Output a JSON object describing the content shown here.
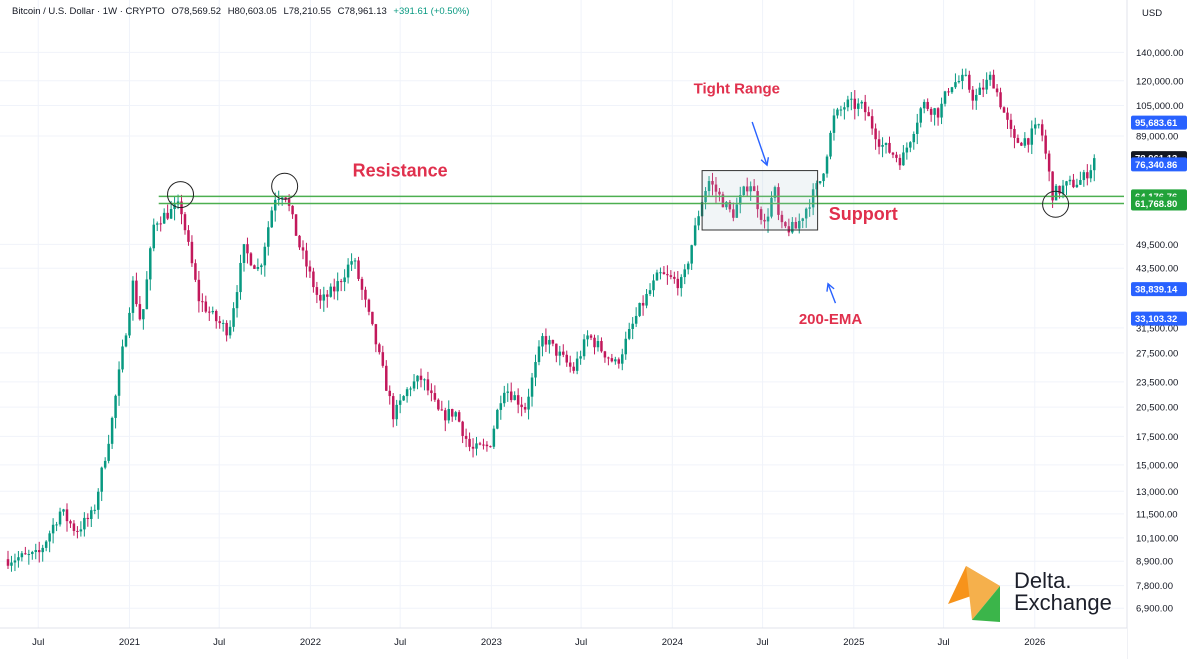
{
  "header": {
    "symbol": "Bitcoin / U.S. Dollar · 1W · CRYPTO",
    "open": "O78,569.52",
    "high": "H80,603.05",
    "low": "L78,210.55",
    "close": "C78,961.13",
    "change": "+391.61 (+0.50%)"
  },
  "brand": {
    "line1": "Delta.",
    "line2": "Exchange",
    "colors": {
      "orange": "#f7931a",
      "green": "#3bb54a"
    }
  },
  "colors": {
    "up": "#089981",
    "down": "#c2185b",
    "level_line": "#4caf50",
    "annotation_text": "#e0304d",
    "annotation_arrow": "#2962ff",
    "blue_badge": "#2962ff",
    "green_badge": "#22a33a",
    "price_badge": "#131722"
  },
  "chart_data": {
    "type": "candlestick",
    "currency_label": "USD",
    "x_range": [
      "2020-05-01",
      "2026-06-30"
    ],
    "y_scale": "log",
    "ylim": [
      6200,
      165000
    ],
    "y_ticks": [
      {
        "value": 140000,
        "label": "140,000.00"
      },
      {
        "value": 120000,
        "label": "120,000.00"
      },
      {
        "value": 105000,
        "label": "105,000.00"
      },
      {
        "value": 89000,
        "label": "89,000.00"
      },
      {
        "value": 49500,
        "label": "49,500.00"
      },
      {
        "value": 43500,
        "label": "43,500.00"
      },
      {
        "value": 31500,
        "label": "31,500.00"
      },
      {
        "value": 27500,
        "label": "27,500.00"
      },
      {
        "value": 23500,
        "label": "23,500.00"
      },
      {
        "value": 20500,
        "label": "20,500.00"
      },
      {
        "value": 17500,
        "label": "17,500.00"
      },
      {
        "value": 15000,
        "label": "15,000.00"
      },
      {
        "value": 13000,
        "label": "13,000.00"
      },
      {
        "value": 11500,
        "label": "11,500.00"
      },
      {
        "value": 10100,
        "label": "10,100.00"
      },
      {
        "value": 8900,
        "label": "8,900.00"
      },
      {
        "value": 7800,
        "label": "7,800.00"
      },
      {
        "value": 6900,
        "label": "6,900.00"
      }
    ],
    "x_ticks": [
      {
        "date": "2020-07-01",
        "label": "Jul"
      },
      {
        "date": "2021-01-01",
        "label": "2021"
      },
      {
        "date": "2021-07-01",
        "label": "Jul"
      },
      {
        "date": "2022-01-01",
        "label": "2022"
      },
      {
        "date": "2022-07-01",
        "label": "Jul"
      },
      {
        "date": "2023-01-01",
        "label": "2023"
      },
      {
        "date": "2023-07-01",
        "label": "Jul"
      },
      {
        "date": "2024-01-01",
        "label": "2024"
      },
      {
        "date": "2024-07-01",
        "label": "Jul"
      },
      {
        "date": "2025-01-01",
        "label": "2025"
      },
      {
        "date": "2025-07-01",
        "label": "Jul"
      },
      {
        "date": "2026-01-01",
        "label": "2026"
      }
    ],
    "price_badges": [
      {
        "value": 95683.61,
        "label": "95,683.61",
        "style": "blue"
      },
      {
        "value": 78961.13,
        "label": "78,961.13",
        "style": "dark"
      },
      {
        "value": 76340.86,
        "label": "76,340.86",
        "style": "blue"
      },
      {
        "value": 64176.76,
        "label": "64,176.76",
        "style": "green"
      },
      {
        "value": 61768.8,
        "label": "61,768.80",
        "style": "green"
      },
      {
        "value": 38839.14,
        "label": "38,839.14",
        "style": "blue"
      },
      {
        "value": 33103.32,
        "label": "33,103.32",
        "style": "blue"
      }
    ],
    "levels": [
      {
        "value": 64176.76,
        "start": "2021-03-01"
      },
      {
        "value": 61768.8,
        "start": "2021-03-01"
      }
    ],
    "annotations": [
      {
        "text": "Resistance",
        "date": "2022-07-01",
        "value": 71500
      },
      {
        "text": "Support",
        "date": "2025-01-20",
        "value": 56500
      },
      {
        "text": "Tight Range",
        "date": "2024-05-10",
        "value": 112000
      },
      {
        "text": "200-EMA",
        "date": "2024-11-15",
        "value": 32200
      }
    ],
    "arrows": [
      {
        "from": {
          "date": "2024-06-10",
          "value": 96000
        },
        "to": {
          "date": "2024-07-10",
          "value": 76000
        }
      },
      {
        "from": {
          "date": "2024-11-25",
          "value": 36000
        },
        "to": {
          "date": "2024-11-10",
          "value": 40000
        }
      }
    ],
    "range_box": {
      "start": "2024-03-01",
      "end": "2024-10-20",
      "high": 73800,
      "low": 53500
    },
    "circles": [
      {
        "date": "2021-04-14",
        "value": 64800
      },
      {
        "date": "2021-11-10",
        "value": 67800
      },
      {
        "date": "2026-02-12",
        "value": 61500
      }
    ],
    "anchors": [
      {
        "date": "2020-05-01",
        "value": 9000
      },
      {
        "date": "2020-07-01",
        "value": 9200
      },
      {
        "date": "2020-08-15",
        "value": 11700
      },
      {
        "date": "2020-09-15",
        "value": 10500
      },
      {
        "date": "2020-10-20",
        "value": 11500
      },
      {
        "date": "2020-11-25",
        "value": 18500
      },
      {
        "date": "2021-01-08",
        "value": 40000
      },
      {
        "date": "2021-01-25",
        "value": 32000
      },
      {
        "date": "2021-02-20",
        "value": 56000
      },
      {
        "date": "2021-04-14",
        "value": 61000
      },
      {
        "date": "2021-05-20",
        "value": 37000
      },
      {
        "date": "2021-06-22",
        "value": 33000
      },
      {
        "date": "2021-07-20",
        "value": 31000
      },
      {
        "date": "2021-08-20",
        "value": 48000
      },
      {
        "date": "2021-09-20",
        "value": 43000
      },
      {
        "date": "2021-10-20",
        "value": 64000
      },
      {
        "date": "2021-11-10",
        "value": 66000
      },
      {
        "date": "2021-12-10",
        "value": 49000
      },
      {
        "date": "2022-01-20",
        "value": 36000
      },
      {
        "date": "2022-02-20",
        "value": 39000
      },
      {
        "date": "2022-03-28",
        "value": 46000
      },
      {
        "date": "2022-05-10",
        "value": 30000
      },
      {
        "date": "2022-06-18",
        "value": 19500
      },
      {
        "date": "2022-07-20",
        "value": 23000
      },
      {
        "date": "2022-08-14",
        "value": 24000
      },
      {
        "date": "2022-09-20",
        "value": 19500
      },
      {
        "date": "2022-10-20",
        "value": 20000
      },
      {
        "date": "2022-11-21",
        "value": 16200
      },
      {
        "date": "2022-12-28",
        "value": 16600
      },
      {
        "date": "2023-01-25",
        "value": 23000
      },
      {
        "date": "2023-03-10",
        "value": 20500
      },
      {
        "date": "2023-04-15",
        "value": 30000
      },
      {
        "date": "2023-06-15",
        "value": 25000
      },
      {
        "date": "2023-07-15",
        "value": 30200
      },
      {
        "date": "2023-09-10",
        "value": 25800
      },
      {
        "date": "2023-10-25",
        "value": 34500
      },
      {
        "date": "2023-12-05",
        "value": 42000
      },
      {
        "date": "2024-01-22",
        "value": 40000
      },
      {
        "date": "2024-02-28",
        "value": 62000
      },
      {
        "date": "2024-03-14",
        "value": 70000
      },
      {
        "date": "2024-05-01",
        "value": 58000
      },
      {
        "date": "2024-06-05",
        "value": 70000
      },
      {
        "date": "2024-07-05",
        "value": 55000
      },
      {
        "date": "2024-07-25",
        "value": 67000
      },
      {
        "date": "2024-08-05",
        "value": 54000
      },
      {
        "date": "2024-09-06",
        "value": 54000
      },
      {
        "date": "2024-10-28",
        "value": 71000
      },
      {
        "date": "2024-11-22",
        "value": 98000
      },
      {
        "date": "2024-12-17",
        "value": 106000
      },
      {
        "date": "2025-01-20",
        "value": 104000
      },
      {
        "date": "2025-02-25",
        "value": 85000
      },
      {
        "date": "2025-04-08",
        "value": 78000
      },
      {
        "date": "2025-05-20",
        "value": 106000
      },
      {
        "date": "2025-06-22",
        "value": 101000
      },
      {
        "date": "2025-07-14",
        "value": 118000
      },
      {
        "date": "2025-08-14",
        "value": 121000
      },
      {
        "date": "2025-09-01",
        "value": 108500
      },
      {
        "date": "2025-10-06",
        "value": 123000
      },
      {
        "date": "2025-10-20",
        "value": 110000
      },
      {
        "date": "2025-11-20",
        "value": 86000
      },
      {
        "date": "2025-12-20",
        "value": 88000
      },
      {
        "date": "2026-01-12",
        "value": 95000
      },
      {
        "date": "2026-02-06",
        "value": 65000
      },
      {
        "date": "2026-03-06",
        "value": 68000
      },
      {
        "date": "2026-04-06",
        "value": 70000
      },
      {
        "date": "2026-05-06",
        "value": 78961
      }
    ]
  }
}
